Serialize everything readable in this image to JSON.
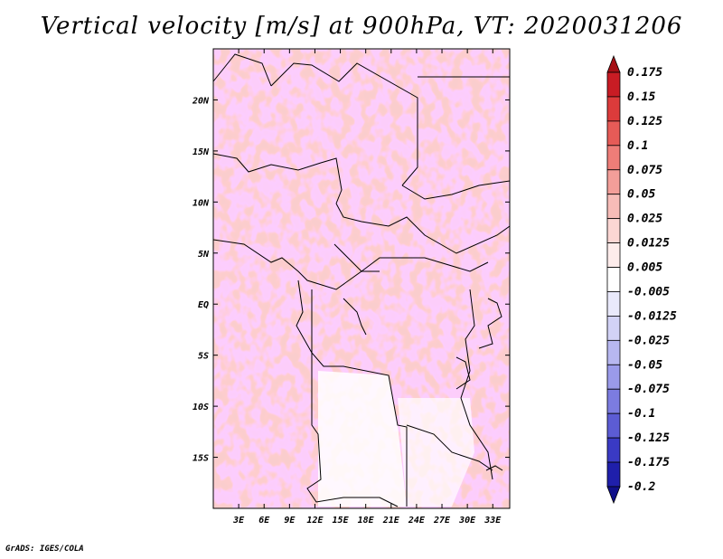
{
  "title": "Vertical velocity [m/s] at 900hPa, VT: 2020031206",
  "footer": "GrADS: IGES/COLA",
  "map": {
    "lon_ticks": [
      "3E",
      "6E",
      "9E",
      "12E",
      "15E",
      "18E",
      "21E",
      "24E",
      "27E",
      "30E",
      "33E"
    ],
    "lat_ticks": [
      "20N",
      "15N",
      "10N",
      "5N",
      "EQ",
      "5S",
      "10S",
      "15S"
    ],
    "lon_range_deg": [
      0,
      35
    ],
    "lat_range_deg": [
      -20,
      25
    ]
  },
  "colorbar": {
    "labels": [
      "0.175",
      "0.15",
      "0.125",
      "0.1",
      "0.075",
      "0.05",
      "0.025",
      "0.0125",
      "0.005",
      "-0.005",
      "-0.0125",
      "-0.025",
      "-0.05",
      "-0.075",
      "-0.1",
      "-0.125",
      "-0.175",
      "-0.2"
    ],
    "colors": [
      "#a50f15",
      "#c81c24",
      "#dc3b3b",
      "#e65b57",
      "#ee7d78",
      "#f39e99",
      "#f7bcb8",
      "#fbd6d3",
      "#fdeceb",
      "#ffffff",
      "#e9e9fb",
      "#d2d2f6",
      "#b7b7f0",
      "#9a9aea",
      "#7c7ce0",
      "#5c5cd4",
      "#3a3ac4",
      "#1f1fab",
      "#10108a"
    ]
  }
}
